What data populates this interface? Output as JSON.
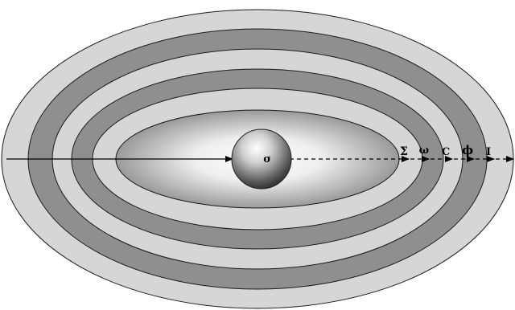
{
  "labels": {
    "center": "σ",
    "sigma": "Σ",
    "omega": "ω",
    "c": "C",
    "phi": "ϕ",
    "i": "I"
  },
  "colors": {
    "light_band": "#d6d6d6",
    "dark_band": "#8f8f8f",
    "outline": "#1a1a1a",
    "core_center": "#ffffff",
    "core_edge": "#9a9a9a",
    "sphere_light": "#ffffff",
    "sphere_dark": "#3a3a3a",
    "arrow": "#000000"
  }
}
